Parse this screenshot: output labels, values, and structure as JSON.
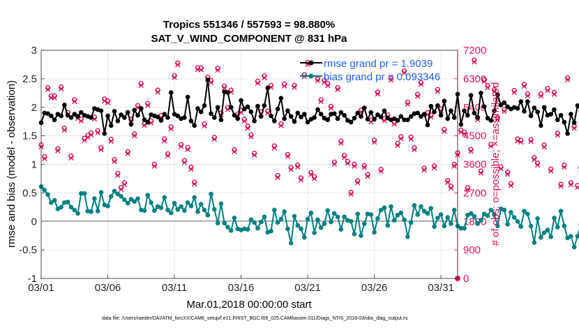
{
  "chart_data": {
    "type": "line",
    "title": "Tropics 551346 / 557593 = 98.880%",
    "subtitle": "SAT_V_WIND_COMPONENT @ 831 hPa",
    "xlabel": "Mar.01,2018 00:00:00 start",
    "ylabel": "rmse and bias (model - observation)",
    "y2label": "# of obs: o=possible; ×=assimilated",
    "footnote": "data file: /Users/raeder/DAI/ATM_forcXX/CAM6_setup/f.e21.FHIST_BGC.f09_025.CAM6assim.011/Diags_NTrS_2018-03/obs_diag_output.nc",
    "x_ticks": [
      "03/01",
      "03/06",
      "03/11",
      "03/16",
      "03/21",
      "03/26",
      "03/31"
    ],
    "x_tick_days": [
      0,
      5,
      10,
      15,
      20,
      25,
      30
    ],
    "xlim": [
      0,
      31.25
    ],
    "ylim": [
      -1,
      3
    ],
    "y_ticks": [
      "-1",
      "-0.5",
      "0",
      "0.5",
      "1",
      "1.5",
      "2",
      "2.5",
      "3"
    ],
    "y2lim": [
      0,
      7200
    ],
    "y2_ticks": [
      "0",
      "900",
      "1800",
      "2700",
      "3600",
      "4500",
      "5400",
      "6300",
      "7200"
    ],
    "legend": [
      {
        "label": "rmse grand pr = 1.9039",
        "color": "#000000"
      },
      {
        "label": "bias grand pr = 0.093346",
        "color": "#008080"
      }
    ],
    "legend_position": "top-right",
    "grid": true,
    "colors": {
      "rmse": "#000000",
      "bias": "#008080",
      "obs": "#d6145a",
      "zero": "#aaaaaa"
    },
    "series": [
      {
        "name": "rmse",
        "x_start": 0,
        "x_step": 0.25,
        "values": [
          1.73,
          1.9,
          1.89,
          1.85,
          1.78,
          1.88,
          1.85,
          2.04,
          1.86,
          1.82,
          1.88,
          1.84,
          1.91,
          1.86,
          1.84,
          1.82,
          1.98,
          1.96,
          1.94,
          1.54,
          1.85,
          1.68,
          1.93,
          1.76,
          1.87,
          1.82,
          1.91,
          1.7,
          1.95,
          1.86,
          1.98,
          1.78,
          1.74,
          1.87,
          1.85,
          1.83,
          1.77,
          1.88,
          1.82,
          2.26,
          1.88,
          1.85,
          1.8,
          1.82,
          2.18,
          1.76,
          1.68,
          1.98,
          1.92,
          2.03,
          2.48,
          1.89,
          1.82,
          2.0,
          1.78,
          2.27,
          2.26,
          2.0,
          1.86,
          1.8,
          2.12,
          1.97,
          2.01,
          1.92,
          1.76,
          2.02,
          1.84,
          2.03,
          2.34,
          1.85,
          1.76,
          1.97,
          2.16,
          1.8,
          1.94,
          1.84,
          1.75,
          1.9,
          1.83,
          1.88,
          1.74,
          1.79,
          1.82,
          1.96,
          1.88,
          1.81,
          1.78,
          1.88,
          1.89,
          1.8,
          1.91,
          1.86,
          1.77,
          1.74,
          1.81,
          1.9,
          1.84,
          1.99,
          1.79,
          1.91,
          1.79,
          1.87,
          1.83,
          1.94,
          1.81,
          1.78,
          1.8,
          1.77,
          1.84,
          1.78,
          1.78,
          1.84,
          1.89,
          1.9,
          1.84,
          1.88,
          1.69,
          2.02,
          1.92,
          2.03,
          1.86,
          2.11,
          1.8,
          1.94,
          1.82,
          2.23,
          1.7,
          1.94,
          1.86,
          2.21,
          1.9,
          1.82,
          2.25,
          2.01,
          1.81,
          1.77,
          1.94,
          2.22,
          2.04,
          2.08,
          2.01,
          1.97,
          2.0,
          1.98,
          2.1,
          1.93,
          2.1,
          1.85,
          1.99,
          1.92,
          1.68,
          2.0,
          1.86,
          1.88,
          1.96,
          1.78,
          1.86,
          1.74,
          1.54,
          1.88,
          1.73,
          2.03,
          1.93,
          1.9,
          1.73,
          1.82,
          1.9,
          2.22,
          1.88,
          1.83,
          1.76,
          1.92,
          1.68,
          1.97,
          1.86,
          1.84,
          1.83
        ]
      },
      {
        "name": "bias",
        "x_start": 0,
        "x_step": 0.25,
        "values": [
          0.61,
          0.55,
          0.47,
          0.33,
          0.37,
          0.22,
          0.25,
          0.33,
          0.34,
          0.25,
          0.2,
          0.14,
          0.49,
          0.49,
          0.18,
          0.17,
          0.4,
          0.18,
          0.51,
          0.29,
          0.27,
          0.44,
          0.53,
          0.48,
          0.44,
          0.38,
          0.32,
          0.39,
          0.35,
          0.4,
          0.2,
          0.19,
          0.46,
          0.33,
          0.19,
          0.26,
          0.24,
          0.42,
          0.2,
          0.15,
          0.32,
          0.21,
          0.26,
          0.19,
          0.33,
          0.27,
          0.42,
          0.17,
          0.3,
          0.2,
          0.11,
          0.48,
          0.21,
          -0.03,
          0.31,
          -0.03,
          -0.1,
          -0.16,
          0.06,
          -0.13,
          -0.15,
          -0.13,
          -0.14,
          0.03,
          -0.02,
          -0.12,
          -0.01,
          0.08,
          -0.19,
          -0.17,
          0.2,
          -0.02,
          0.04,
          0.17,
          -0.13,
          -0.38,
          0.09,
          -0.07,
          -0.13,
          -0.28,
          0.04,
          0.15,
          -0.2,
          0.03,
          -0.11,
          -0.04,
          0.19,
          -0.01,
          0.14,
          0.08,
          -0.14,
          0.08,
          0.02,
          0.0,
          -0.22,
          0.13,
          -0.25,
          -0.04,
          0.13,
          0.12,
          -0.19,
          0.05,
          0.2,
          0.24,
          -0.07,
          0.26,
          0.02,
          0.11,
          0.15,
          0.03,
          -0.27,
          -0.02,
          0.28,
          0.12,
          0.26,
          0.18,
          0.14,
          0.23,
          -0.09,
          0.06,
          0.12,
          -0.08,
          0.07,
          -0.04,
          0.2,
          -0.08,
          -0.12,
          -0.12,
          0.11,
          0.14,
          0.09,
          -0.04,
          0.02,
          0.13,
          0.1,
          0.2,
          0.12,
          -0.08,
          0.22,
          0.2,
          -0.05,
          0.16,
          0.07,
          0.0,
          -0.09,
          0.18,
          0.13,
          -0.08,
          -0.37,
          0.05,
          -0.28,
          -0.2,
          -0.15,
          -0.27,
          0.06,
          -0.1,
          0.18,
          -0.08,
          -0.29,
          -0.26,
          -0.45,
          -0.26,
          -0.06,
          0.11,
          0.0,
          -0.19,
          0.04,
          0.21,
          -0.1,
          -0.04,
          0.14,
          -0.02,
          -0.07,
          0.04,
          -0.04,
          0.07,
          0.02,
          -0.04,
          0.08,
          -0.07,
          0.16,
          -0.08,
          0.0,
          0.02,
          -0.02,
          0.04,
          -0.25
        ]
      },
      {
        "name": "obs_possible",
        "marker": "o",
        "x_start": 0,
        "x_step": 0.25,
        "values": [
          4215,
          3840,
          6020,
          5760,
          5760,
          4090,
          6040,
          4740,
          5240,
          3860,
          5640,
          5110,
          5030,
          4420,
          4510,
          4590,
          5090,
          4660,
          4120,
          5660,
          5600,
          4390,
          3750,
          3310,
          2870,
          3020,
          4000,
          5020,
          4560,
          5450,
          6150,
          4890,
          5520,
          4970,
          3600,
          5940,
          5140,
          4400,
          3930,
          4780,
          6400,
          6800,
          4220,
          3720,
          4130,
          3510,
          3040,
          6650,
          6640,
          4870,
          6350,
          6240,
          4450,
          6630,
          5220,
          6070,
          5390,
          5940,
          4060,
          5190,
          5300,
          5020,
          4800,
          4530,
          3950,
          6220,
          5260,
          6390,
          5280,
          6090,
          4180,
          3250,
          4880,
          6130,
          3910,
          3500,
          6090,
          3580,
          3170,
          6430,
          6810,
          3340,
          3210,
          6300,
          5640,
          6250,
          6150,
          5430,
          3670,
          6020,
          4330,
          3880,
          3690,
          2720,
          3600,
          3080,
          5310,
          3560,
          3280,
          5000,
          4360,
          5880,
          3440,
          5040,
          5160,
          6320,
          4930,
          4260,
          4470,
          6550,
          5560,
          4460,
          4120,
          5810,
          6180,
          3480,
          5230,
          5150,
          3550,
          5960,
          5350,
          4700,
          3090,
          2910,
          3600,
          3960,
          4680,
          4620,
          2860,
          4070,
          6890,
          5070,
          3390,
          6270,
          6080,
          4230,
          5960,
          5070,
          3520,
          5330,
          3350,
          2990,
          5930,
          4400,
          4360,
          6120,
          5820,
          4380,
          3810,
          3640,
          5820,
          4210,
          5990,
          3450,
          5870,
          4580,
          2970,
          3570,
          6330,
          3020,
          4800,
          2930,
          3500,
          4840,
          2870,
          3610,
          3850,
          5600,
          5250,
          3160,
          5760,
          3760,
          5420,
          6190,
          6650,
          5530,
          3200,
          4390,
          4090,
          5580,
          5970
        ]
      },
      {
        "name": "obs_assimilated",
        "marker": "x",
        "x_start": 0,
        "x_step": 0.25,
        "values": [
          4155,
          3780,
          5960,
          5700,
          5700,
          4030,
          5980,
          4680,
          5180,
          3800,
          5580,
          5050,
          4970,
          4360,
          4450,
          4530,
          5030,
          4600,
          4060,
          5600,
          5540,
          4330,
          3690,
          3250,
          2810,
          2960,
          3940,
          4960,
          4500,
          5390,
          6090,
          4830,
          5460,
          4910,
          3540,
          5880,
          5080,
          4340,
          3870,
          4720,
          6340,
          6740,
          4160,
          3660,
          4070,
          3450,
          2980,
          6590,
          6580,
          4810,
          6290,
          6180,
          4390,
          6570,
          5160,
          6010,
          5330,
          5880,
          4000,
          5130,
          5240,
          4960,
          4740,
          4470,
          3890,
          6160,
          5200,
          6330,
          5220,
          6030,
          4120,
          3190,
          4820,
          6070,
          3850,
          3440,
          6030,
          3520,
          3110,
          6370,
          6750,
          3280,
          3150,
          6240,
          5580,
          6190,
          6090,
          5370,
          3610,
          5960,
          4270,
          3820,
          3630,
          2660,
          3540,
          3020,
          5250,
          3500,
          3220,
          4940,
          4300,
          5820,
          3380,
          4980,
          5100,
          6260,
          4870,
          4200,
          4410,
          6490,
          5500,
          4400,
          4060,
          5750,
          6120,
          3420,
          5170,
          5090,
          3490,
          5900,
          5290,
          4640,
          3030,
          2850,
          3540,
          3900,
          4620,
          4560,
          2800,
          4010,
          6830,
          5010,
          3330,
          6210,
          6020,
          4170,
          5900,
          5010,
          3460,
          5270,
          3290,
          2930,
          5870,
          4340,
          4300,
          6060,
          5760,
          4320,
          3750,
          3580,
          5760,
          4150,
          5930,
          3390,
          5810,
          4520,
          2910,
          3510,
          6270,
          2960,
          4740,
          2870,
          3440,
          4780,
          2810,
          3550,
          3790,
          5540,
          5190,
          3100,
          5700,
          3700,
          5360,
          6130,
          6590,
          5470,
          3140,
          4330,
          4030,
          5520,
          5910
        ]
      }
    ]
  }
}
